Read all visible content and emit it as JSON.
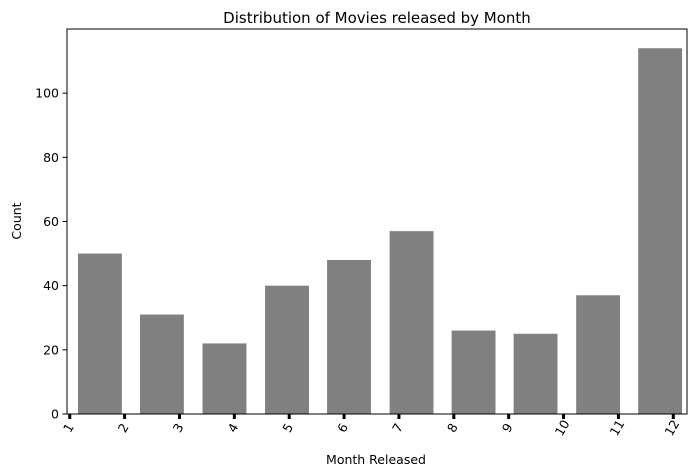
{
  "chart_data": {
    "type": "bar",
    "title": "Distribution of Movies released by Month",
    "xlabel": "Month Released",
    "ylabel": "Count",
    "x_ticks": [
      "1",
      "2",
      "3",
      "4",
      "5",
      "6",
      "7",
      "8",
      "9",
      "10",
      "11",
      "12"
    ],
    "x_range": [
      0.95,
      12.25
    ],
    "bars": [
      {
        "from": 1.15,
        "to": 1.95,
        "value": 50
      },
      {
        "from": 2.28,
        "to": 3.08,
        "value": 31
      },
      {
        "from": 3.42,
        "to": 4.22,
        "value": 22
      },
      {
        "from": 4.56,
        "to": 5.36,
        "value": 40
      },
      {
        "from": 5.69,
        "to": 6.49,
        "value": 48
      },
      {
        "from": 6.83,
        "to": 7.63,
        "value": 57
      },
      {
        "from": 7.96,
        "to": 8.76,
        "value": 26
      },
      {
        "from": 9.09,
        "to": 9.89,
        "value": 25
      },
      {
        "from": 10.23,
        "to": 11.03,
        "value": 37
      },
      {
        "from": 11.36,
        "to": 12.16,
        "value": 114
      }
    ],
    "y_ticks": [
      0,
      20,
      40,
      60,
      80,
      100
    ],
    "ylim": [
      0,
      120
    ],
    "bar_color": "#808080",
    "grid": false,
    "x_tick_rotation": "rotated ~60°"
  }
}
